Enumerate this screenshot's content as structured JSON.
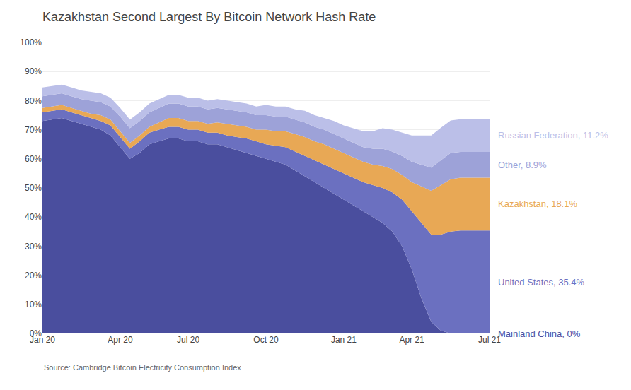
{
  "chart_data": {
    "type": "area",
    "title": "Kazakhstan Second Largest By Bitcoin Network Hash Rate",
    "annotations": [
      "Source: Cambridge Bitcoin Electricity Consumption Index"
    ],
    "stacked": true,
    "grid": true,
    "categories": [
      "Jan 20",
      null,
      null,
      null,
      null,
      null,
      null,
      null,
      "Apr 20",
      null,
      null,
      null,
      null,
      null,
      null,
      "Jul 20",
      null,
      null,
      null,
      null,
      null,
      null,
      null,
      "Oct 20",
      null,
      null,
      null,
      null,
      null,
      null,
      null,
      "Jan 21",
      null,
      null,
      null,
      null,
      null,
      null,
      "Apr 21",
      null,
      null,
      null,
      null,
      null,
      null,
      null,
      "Jul 21"
    ],
    "ylim": [
      0,
      100
    ],
    "yticks": [
      {
        "value": 0,
        "label": "0%"
      },
      {
        "value": 10,
        "label": "10%"
      },
      {
        "value": 20,
        "label": "20%"
      },
      {
        "value": 30,
        "label": "30%"
      },
      {
        "value": 40,
        "label": "40%"
      },
      {
        "value": 50,
        "label": "50%"
      },
      {
        "value": 60,
        "label": "60%"
      },
      {
        "value": 70,
        "label": "70%"
      },
      {
        "value": 80,
        "label": "80%"
      },
      {
        "value": 90,
        "label": "90%"
      },
      {
        "value": 100,
        "label": "100%"
      }
    ],
    "series": [
      {
        "name": "Mainland China, 0%",
        "color": "#4a4e9e",
        "values": [
          73,
          73.5,
          74,
          73,
          72,
          71,
          70,
          68,
          64,
          60,
          62,
          65,
          66,
          67,
          67,
          66,
          66,
          65,
          65,
          64,
          63,
          62,
          61,
          60,
          59,
          58,
          56,
          54,
          52,
          50,
          48,
          46,
          44,
          42,
          40,
          38,
          35,
          30,
          22,
          12,
          4,
          1,
          0,
          0,
          0,
          0,
          0
        ]
      },
      {
        "name": "United States, 35.4%",
        "color": "#6b70c0",
        "values": [
          3,
          3,
          3,
          3,
          3,
          3,
          3,
          3.5,
          3.5,
          3.5,
          4,
          4,
          4,
          4,
          4,
          4,
          4,
          4,
          4,
          4,
          4.5,
          5,
          5,
          5,
          5.5,
          6,
          6.5,
          7,
          7.5,
          8,
          8.5,
          9,
          9.5,
          10,
          11,
          12,
          13.5,
          16,
          20,
          26,
          30,
          33,
          35,
          35.4,
          35.4,
          35.4,
          35.4
        ]
      },
      {
        "name": "Kazakhstan, 18.1%",
        "color": "#e8a855",
        "values": [
          1.5,
          1.5,
          1.5,
          1.5,
          1.5,
          1.5,
          2,
          2,
          2,
          2,
          2,
          2,
          2.5,
          3,
          3,
          3,
          3,
          3,
          3.5,
          4,
          4,
          4,
          4,
          5,
          5,
          5.5,
          6,
          6.5,
          6.5,
          7,
          7,
          7,
          7,
          7,
          7,
          7.5,
          8,
          8.5,
          10,
          12.5,
          15,
          17,
          18,
          18.1,
          18.1,
          18.1,
          18.1
        ]
      },
      {
        "name": "Other, 8.9%",
        "color": "#9da2d8",
        "values": [
          4,
          4,
          4,
          4,
          4,
          4.5,
          4.5,
          4.5,
          5,
          5,
          5,
          5,
          5,
          5,
          5,
          5,
          5,
          5,
          5,
          5,
          5,
          5,
          5,
          5,
          5,
          5,
          5,
          5,
          5,
          5,
          5,
          5,
          5,
          5,
          5.5,
          6,
          6,
          6.5,
          7,
          7.5,
          8,
          8.5,
          9,
          8.9,
          8.9,
          8.9,
          8.9
        ]
      },
      {
        "name": "Russian Federation, 11.2%",
        "color": "#bbbfe8",
        "values": [
          3,
          3,
          3,
          3,
          3,
          3,
          3,
          3,
          3,
          3,
          3,
          3,
          3,
          3,
          3,
          3,
          3,
          3,
          3,
          3,
          3,
          3,
          3,
          3.5,
          3.5,
          3.5,
          3.5,
          4,
          4,
          4,
          4.5,
          4.5,
          5,
          5.5,
          6,
          7,
          7.5,
          8,
          9,
          10,
          11,
          11.2,
          11.2,
          11.2,
          11.2,
          11.2,
          11.2
        ]
      }
    ]
  }
}
